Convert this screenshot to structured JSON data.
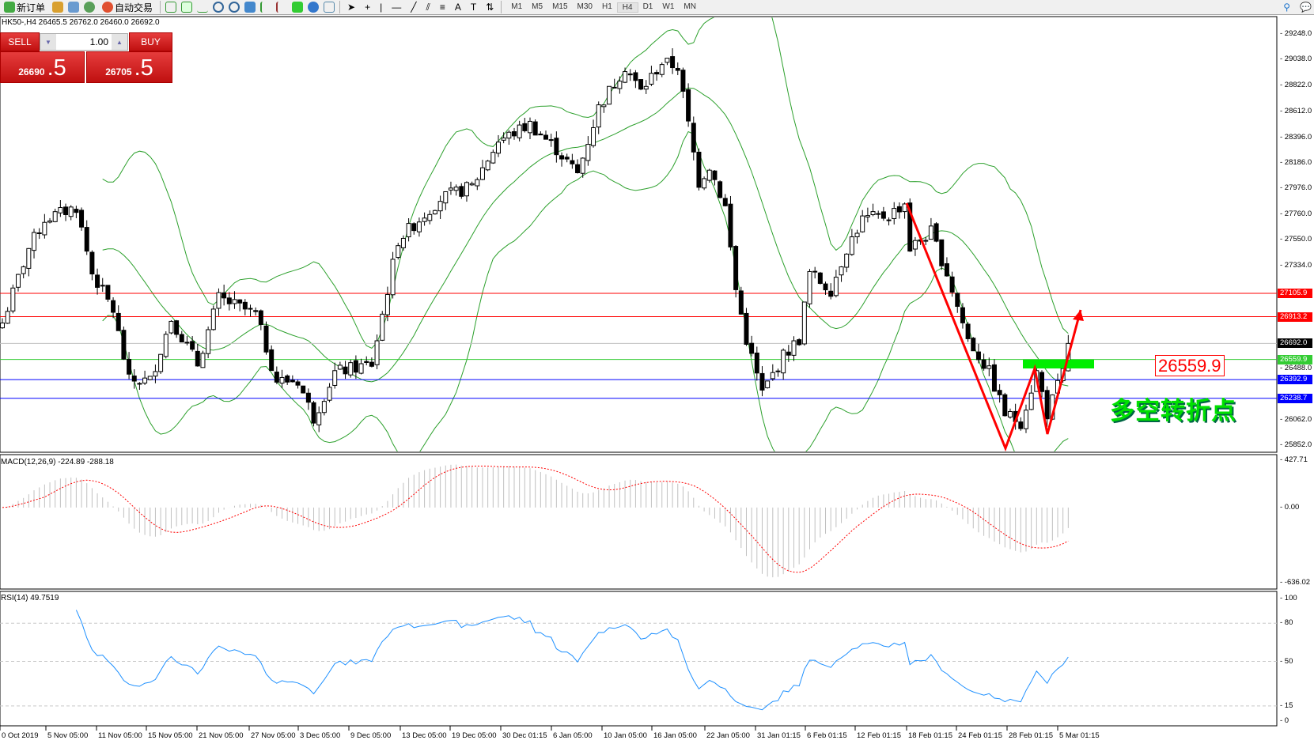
{
  "toolbar": {
    "new_order": "新订单",
    "auto_trading": "自动交易",
    "timeframes": [
      "M1",
      "M5",
      "M15",
      "M30",
      "H1",
      "H4",
      "D1",
      "W1",
      "MN"
    ],
    "active_timeframe": "H4"
  },
  "symbol_header": "HK50-,H4  26465.5 26762.0 26460.0 26692.0",
  "trade_panel": {
    "sell_label": "SELL",
    "buy_label": "BUY",
    "lot": "1.00",
    "sell_price_main": "26690",
    "sell_price_frac": ".5",
    "buy_price_main": "26705",
    "buy_price_frac": ".5",
    "color": "#d42020"
  },
  "annotation": {
    "text": "多空转折点",
    "level_label": "26559.9",
    "arrow_color": "#ff0000",
    "zone_color": "#00ee00"
  },
  "chart_data": {
    "type": "candlestick",
    "symbol": "HK50-",
    "timeframe": "H4",
    "last_bar": {
      "open": 26465.5,
      "high": 26762.0,
      "low": 26460.0,
      "close": 26692.0
    },
    "price_ticks": [
      "29248.0",
      "29038.0",
      "28822.0",
      "28612.0",
      "28396.0",
      "28186.0",
      "27976.0",
      "27760.0",
      "27550.0",
      "27334.0",
      "26488.0",
      "26062.0",
      "25852.0"
    ],
    "ylim": [
      25852,
      29248
    ],
    "close_path": [
      [
        0,
        26862
      ],
      [
        5,
        27478
      ],
      [
        8,
        27717
      ],
      [
        14,
        27820
      ],
      [
        17,
        27273
      ],
      [
        21,
        26965
      ],
      [
        24,
        26384
      ],
      [
        28,
        26384
      ],
      [
        32,
        26897
      ],
      [
        37,
        26521
      ],
      [
        41,
        27068
      ],
      [
        48,
        26931
      ],
      [
        52,
        26384
      ],
      [
        56,
        26384
      ],
      [
        59,
        26077
      ],
      [
        63,
        26453
      ],
      [
        70,
        26521
      ],
      [
        72,
        26931
      ],
      [
        75,
        27546
      ],
      [
        83,
        27888
      ],
      [
        89,
        27990
      ],
      [
        94,
        28366
      ],
      [
        100,
        28503
      ],
      [
        105,
        28298
      ],
      [
        109,
        28093
      ],
      [
        113,
        28640
      ],
      [
        118,
        28981
      ],
      [
        121,
        28776
      ],
      [
        125,
        29015
      ],
      [
        128,
        28981
      ],
      [
        130,
        28503
      ],
      [
        132,
        28025
      ],
      [
        134,
        28161
      ],
      [
        137,
        27820
      ],
      [
        139,
        27136
      ],
      [
        141,
        26726
      ],
      [
        144,
        26282
      ],
      [
        148,
        26590
      ],
      [
        151,
        26726
      ],
      [
        153,
        27273
      ],
      [
        157,
        27136
      ],
      [
        160,
        27478
      ],
      [
        163,
        27717
      ],
      [
        168,
        27751
      ],
      [
        171,
        27854
      ],
      [
        172,
        27478
      ],
      [
        176,
        27614
      ],
      [
        179,
        27273
      ],
      [
        183,
        26726
      ],
      [
        187,
        26453
      ],
      [
        190,
        26111
      ],
      [
        193,
        26042
      ],
      [
        196,
        26453
      ],
      [
        198,
        26111
      ],
      [
        201,
        26453
      ],
      [
        202,
        26692
      ]
    ],
    "hlines": [
      {
        "value": 27105.9,
        "label": "27105.9",
        "color": "#ff0000"
      },
      {
        "value": 26913.2,
        "label": "26913.2",
        "color": "#ff0000"
      },
      {
        "value": 26692.0,
        "label": "26692.0",
        "color": "#000000",
        "line": "#c0c0c0"
      },
      {
        "value": 26559.9,
        "label": "26559.9",
        "color": "#33cc33"
      },
      {
        "value": 26392.9,
        "label": "26392.9",
        "color": "#0000ff"
      },
      {
        "value": 26238.7,
        "label": "26238.7",
        "color": "#0000ff"
      }
    ],
    "indicators": {
      "bollinger": {
        "color": "#2ca02c"
      },
      "macd": {
        "label": "MACD(12,26,9) -224.89 -288.18",
        "ticks": [
          "427.71",
          "0.00",
          "-636.02"
        ],
        "ylim": [
          -636.02,
          427.71
        ],
        "hist_color": "#c0c0c0",
        "signal_color": "#ff0000"
      },
      "rsi": {
        "label": "RSI(14) 49.7519",
        "ticks": [
          "100",
          "80",
          "50",
          "15",
          "0"
        ],
        "levels": [
          80,
          50,
          15
        ],
        "color": "#1e90ff"
      }
    },
    "x_ticks": [
      "0 Oct 2019",
      "5 Nov 05:00",
      "11 Nov 05:00",
      "15 Nov 05:00",
      "21 Nov 05:00",
      "27 Nov 05:00",
      "3 Dec 05:00",
      "9 Dec 05:00",
      "13 Dec 05:00",
      "19 Dec 05:00",
      "30 Dec 01:15",
      "6 Jan 05:00",
      "10 Jan 05:00",
      "16 Jan 05:00",
      "22 Jan 05:00",
      "31 Jan 01:15",
      "6 Feb 01:15",
      "12 Feb 01:15",
      "18 Feb 01:15",
      "24 Feb 01:15",
      "28 Feb 01:15",
      "5 Mar 01:15"
    ]
  }
}
